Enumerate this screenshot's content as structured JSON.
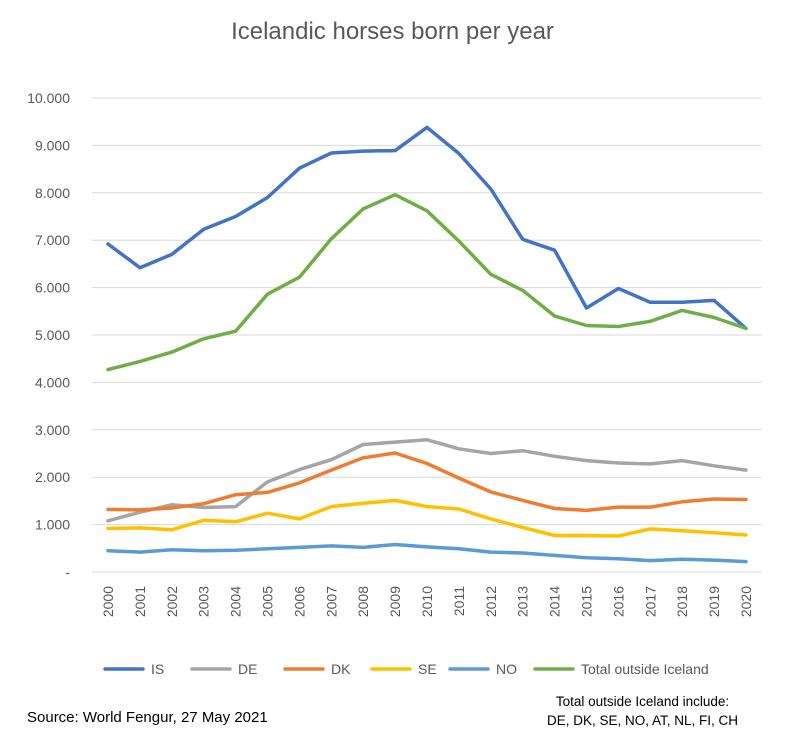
{
  "chart_data": {
    "type": "line",
    "title": "Icelandic horses born per year",
    "x": [
      "2000",
      "2001",
      "2002",
      "2003",
      "2004",
      "2005",
      "2006",
      "2007",
      "2008",
      "2009",
      "2010",
      "2011",
      "2012",
      "2013",
      "2014",
      "2015",
      "2016",
      "2017",
      "2018",
      "2019",
      "2020"
    ],
    "ylim": [
      0,
      10000
    ],
    "yticks": [
      0,
      1000,
      2000,
      3000,
      4000,
      5000,
      6000,
      7000,
      8000,
      9000,
      10000
    ],
    "ytick_labels": [
      "-",
      "1.000",
      "2.000",
      "3.000",
      "4.000",
      "5.000",
      "6.000",
      "7.000",
      "8.000",
      "9.000",
      "10.000"
    ],
    "grid": true,
    "legend_position": "bottom",
    "series": [
      {
        "name": "IS",
        "color": "#4472C4",
        "values": [
          6920,
          6420,
          6700,
          7230,
          7500,
          7900,
          8520,
          8840,
          8880,
          8890,
          9380,
          8830,
          8080,
          7020,
          6790,
          5570,
          5980,
          5690,
          5690,
          5730,
          5140
        ]
      },
      {
        "name": "DE",
        "color": "#A5A5A5",
        "values": [
          1080,
          1260,
          1420,
          1360,
          1380,
          1900,
          2160,
          2370,
          2690,
          2740,
          2790,
          2600,
          2500,
          2560,
          2440,
          2350,
          2300,
          2280,
          2350,
          2240,
          2150
        ]
      },
      {
        "name": "DK",
        "color": "#ED7D31",
        "values": [
          1320,
          1310,
          1350,
          1440,
          1630,
          1680,
          1880,
          2150,
          2410,
          2510,
          2290,
          1980,
          1690,
          1510,
          1340,
          1300,
          1370,
          1370,
          1480,
          1540,
          1530
        ]
      },
      {
        "name": "SE",
        "color": "#FFC000",
        "values": [
          920,
          930,
          890,
          1090,
          1060,
          1240,
          1120,
          1380,
          1450,
          1510,
          1380,
          1330,
          1120,
          940,
          770,
          770,
          760,
          910,
          870,
          830,
          780
        ]
      },
      {
        "name": "NO",
        "color": "#5B9BD5",
        "values": [
          450,
          420,
          470,
          450,
          460,
          490,
          520,
          550,
          520,
          580,
          530,
          490,
          420,
          400,
          350,
          300,
          280,
          240,
          270,
          250,
          220
        ]
      },
      {
        "name": "Total outside Iceland",
        "color": "#70AD47",
        "values": [
          4270,
          4440,
          4640,
          4920,
          5080,
          5860,
          6220,
          7030,
          7660,
          7960,
          7620,
          6980,
          6280,
          5940,
          5400,
          5200,
          5180,
          5290,
          5520,
          5370,
          5140
        ]
      }
    ]
  },
  "source_text": "Source: World Fengur, 27 May 2021",
  "note": {
    "line1": "Total outside Iceland include:",
    "line2": "DE, DK, SE, NO, AT, NL, FI, CH"
  }
}
